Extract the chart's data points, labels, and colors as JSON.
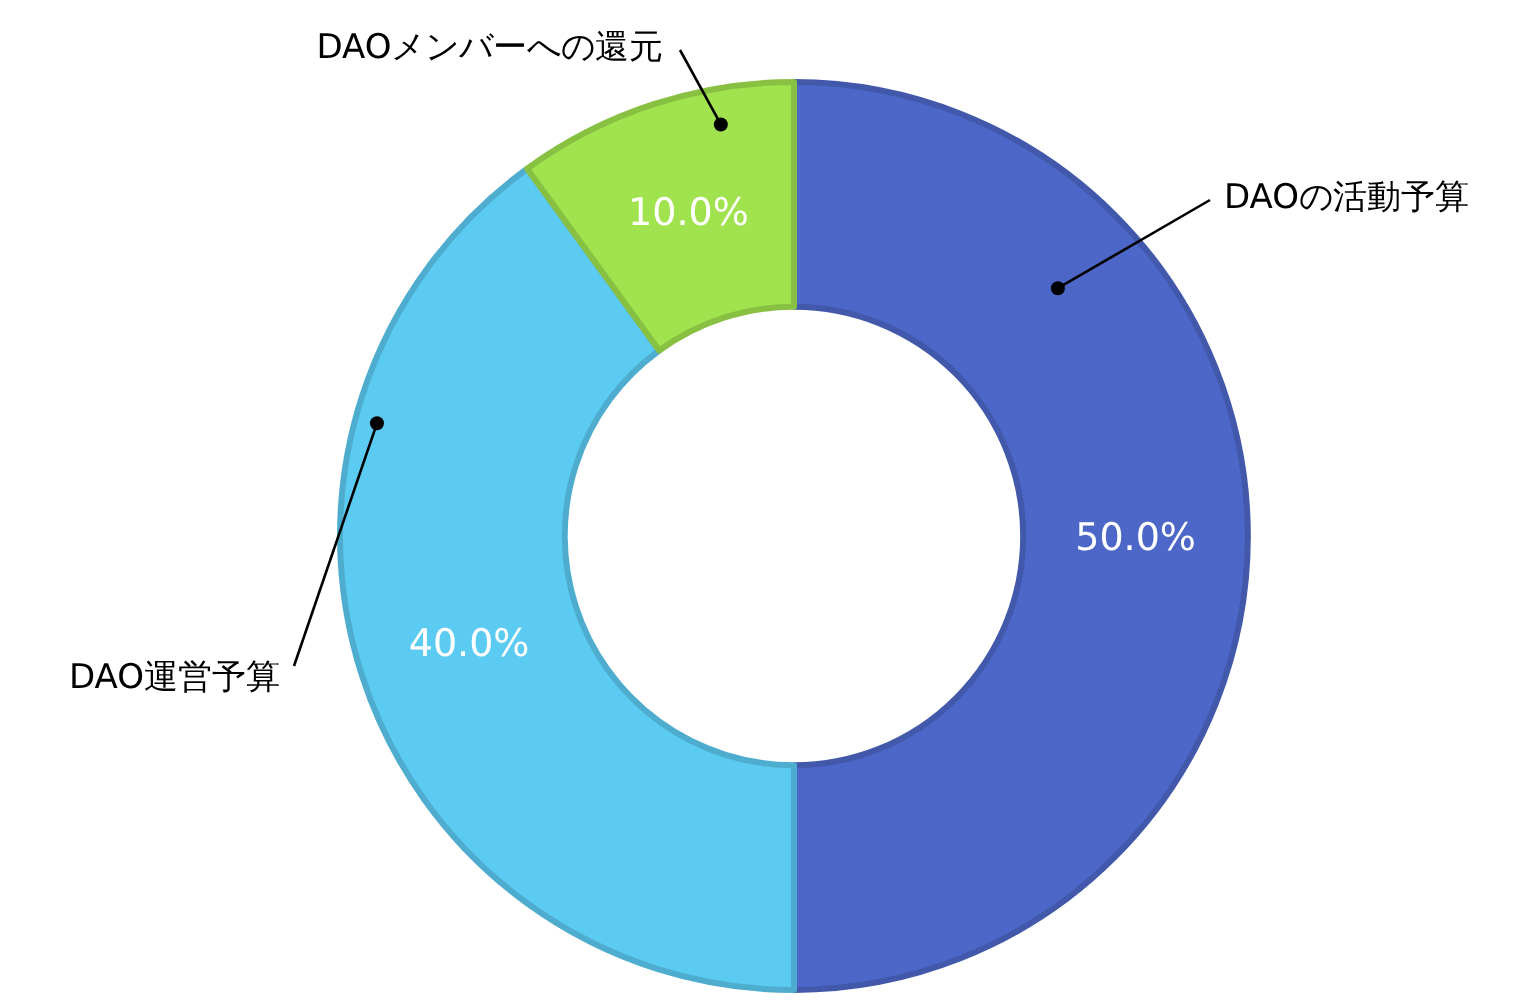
{
  "chart_data": {
    "type": "donut",
    "categories": [
      "DAOの活動予算",
      "DAO運営予算",
      "DAOメンバーへの還元"
    ],
    "values": [
      50,
      40,
      10
    ],
    "colors": [
      "#4d67c9",
      "#5ccbf2",
      "#a0e34e"
    ],
    "value_labels": [
      "50.0%",
      "40.0%",
      "10.0%"
    ]
  }
}
